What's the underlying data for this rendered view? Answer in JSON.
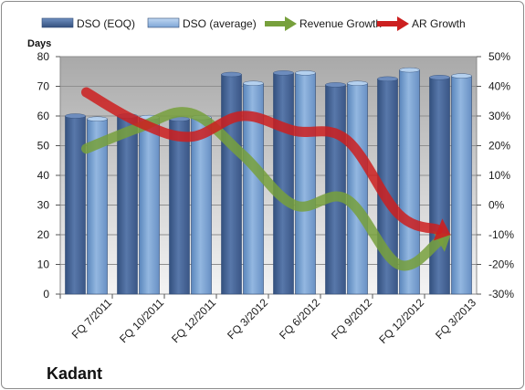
{
  "chart_data": {
    "type": "bar",
    "title": "Kadant",
    "ylabel": "Days",
    "categories": [
      "FQ 7/2011",
      "FQ 10/2011",
      "FQ 12/2011",
      "FQ 3/2012",
      "FQ 6/2012",
      "FQ 9/2012",
      "FQ 12/2012",
      "FQ 3/2013"
    ],
    "ylim": [
      0,
      80
    ],
    "yticks": [
      0,
      10,
      20,
      30,
      40,
      50,
      60,
      70,
      80
    ],
    "y2lim": [
      -30,
      50
    ],
    "y2ticks": [
      "-30%",
      "-20%",
      "-10%",
      "0%",
      "10%",
      "20%",
      "30%",
      "40%",
      "50%"
    ],
    "y2tick_values": [
      -30,
      -20,
      -10,
      0,
      10,
      20,
      30,
      40,
      50
    ],
    "legend_position": "top",
    "plot_background": "#c0c0c0",
    "series": [
      {
        "name": "DSO (EOQ)",
        "kind": "bar",
        "axis": "left",
        "color": "#4f6fa0",
        "values": [
          60,
          60,
          59,
          74,
          74.5,
          70.5,
          72.5,
          73
        ]
      },
      {
        "name": "DSO (average)",
        "kind": "bar",
        "axis": "left",
        "color": "#7fa6d4",
        "values": [
          59,
          59.5,
          59.5,
          71,
          74.5,
          71,
          75.5,
          73.5
        ]
      },
      {
        "name": "Revenue Growth",
        "kind": "line",
        "axis": "right",
        "color": "#77a03c",
        "values": [
          19,
          26,
          31,
          17,
          0,
          2,
          -20,
          -10
        ]
      },
      {
        "name": "AR Growth",
        "kind": "line",
        "axis": "right",
        "color": "#cc1f1f",
        "values": [
          38,
          28,
          23,
          30,
          25,
          22,
          -3,
          -10
        ]
      }
    ]
  }
}
